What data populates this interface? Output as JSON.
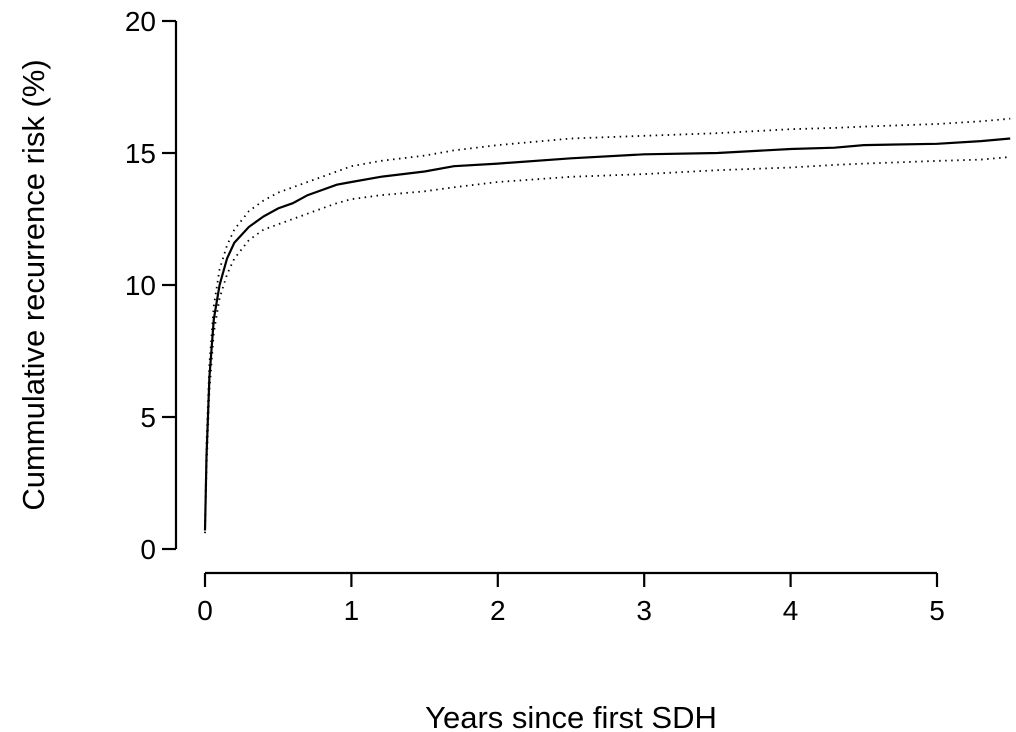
{
  "chart_data": {
    "type": "line",
    "xlabel": "Years since first SDH",
    "ylabel": "Cummulative recurrence risk (%)",
    "xlim": [
      0,
      5.5
    ],
    "ylim": [
      0,
      20
    ],
    "xticks": [
      "0",
      "1",
      "2",
      "3",
      "4",
      "5"
    ],
    "yticks": [
      "0",
      "5",
      "10",
      "15",
      "20"
    ],
    "grid": false,
    "series": [
      {
        "line_style": "solid",
        "x": [
          0,
          0.01,
          0.03,
          0.06,
          0.1,
          0.15,
          0.2,
          0.3,
          0.4,
          0.5,
          0.6,
          0.7,
          0.8,
          0.9,
          1.0,
          1.2,
          1.5,
          1.7,
          2.0,
          2.5,
          3.0,
          3.5,
          4.0,
          4.3,
          4.5,
          5.0,
          5.3,
          5.5
        ],
        "y": [
          0.7,
          3.5,
          6.5,
          8.7,
          10.0,
          11.0,
          11.6,
          12.2,
          12.6,
          12.9,
          13.1,
          13.4,
          13.6,
          13.8,
          13.9,
          14.1,
          14.3,
          14.5,
          14.6,
          14.8,
          14.95,
          15.0,
          15.15,
          15.2,
          15.3,
          15.35,
          15.45,
          15.55
        ]
      },
      {
        "line_style": "dotted",
        "x": [
          0,
          0.01,
          0.03,
          0.06,
          0.1,
          0.15,
          0.2,
          0.3,
          0.4,
          0.5,
          0.6,
          0.7,
          0.8,
          0.9,
          1.0,
          1.2,
          1.5,
          1.7,
          2.0,
          2.5,
          3.0,
          3.5,
          4.0,
          4.3,
          4.5,
          5.0,
          5.3,
          5.5
        ],
        "y": [
          0.8,
          4.0,
          7.0,
          9.2,
          10.6,
          11.5,
          12.1,
          12.8,
          13.2,
          13.5,
          13.7,
          13.9,
          14.1,
          14.3,
          14.5,
          14.7,
          14.9,
          15.1,
          15.3,
          15.55,
          15.65,
          15.75,
          15.9,
          15.95,
          16.0,
          16.1,
          16.2,
          16.3
        ]
      },
      {
        "line_style": "dotted",
        "x": [
          0,
          0.01,
          0.03,
          0.06,
          0.1,
          0.15,
          0.2,
          0.3,
          0.4,
          0.5,
          0.6,
          0.7,
          0.8,
          0.9,
          1.0,
          1.2,
          1.5,
          1.7,
          2.0,
          2.5,
          3.0,
          3.5,
          4.0,
          4.3,
          4.5,
          5.0,
          5.3,
          5.5
        ],
        "y": [
          0.6,
          3.0,
          6.0,
          8.2,
          9.5,
          10.4,
          11.0,
          11.7,
          12.1,
          12.3,
          12.5,
          12.7,
          12.9,
          13.1,
          13.25,
          13.4,
          13.55,
          13.7,
          13.9,
          14.1,
          14.2,
          14.35,
          14.45,
          14.55,
          14.6,
          14.7,
          14.75,
          14.85
        ]
      }
    ]
  }
}
